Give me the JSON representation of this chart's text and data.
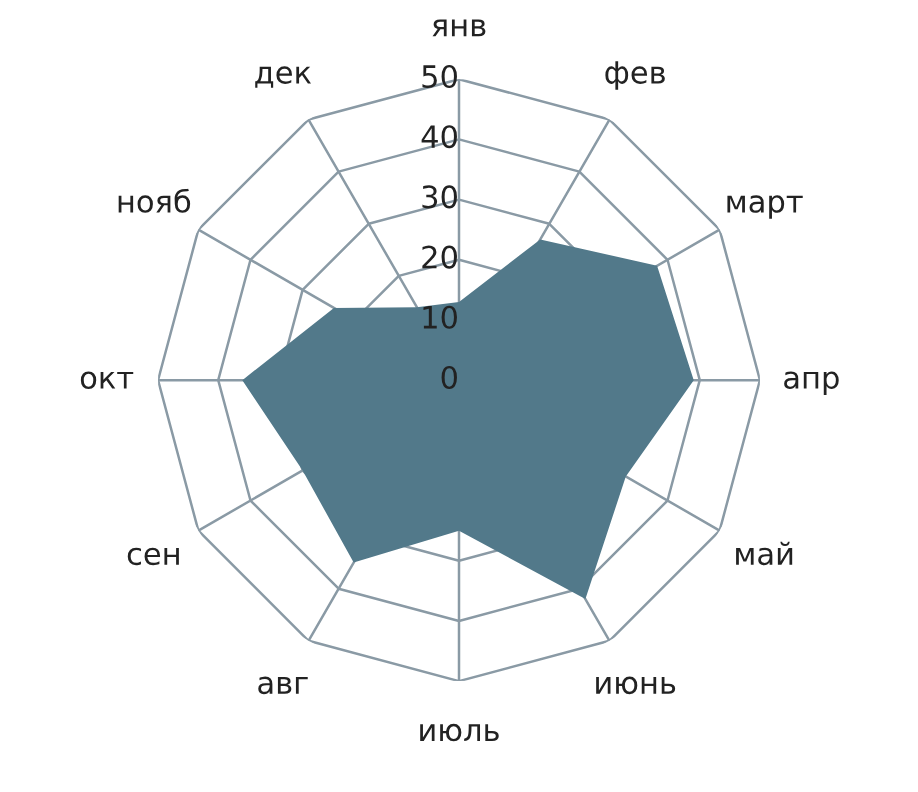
{
  "chart_data": {
    "type": "radar",
    "categories": [
      "янв",
      "фев",
      "март",
      "апр",
      "май",
      "июнь",
      "июль",
      "авг",
      "сен",
      "окт",
      "нояб",
      "дек"
    ],
    "series": [
      {
        "color": "#52798a",
        "values": [
          13,
          27,
          38,
          39,
          32,
          42,
          25,
          35,
          30,
          36,
          24,
          14
        ]
      }
    ],
    "ylim": [
      0,
      50
    ],
    "yticks": [
      0,
      10,
      20,
      30,
      40,
      50
    ],
    "grid": true,
    "legend": false
  }
}
